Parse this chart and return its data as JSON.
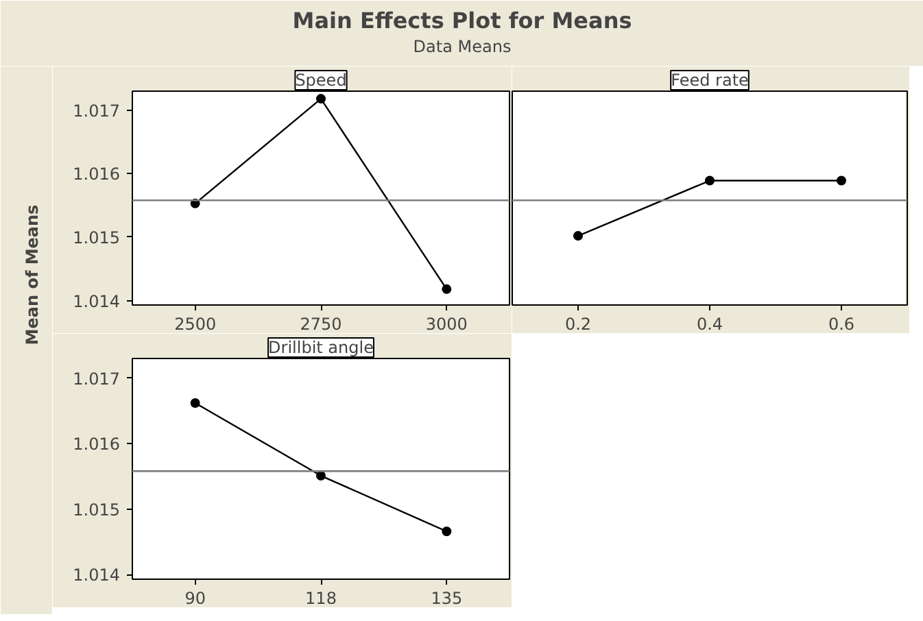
{
  "chart_data": [
    {
      "type": "line",
      "title": "Main Effects Plot for Means",
      "subtitle": "Data Means",
      "ylabel": "Mean of Means",
      "xlabel": "Speed",
      "categories": [
        "2500",
        "2750",
        "3000"
      ],
      "series": [
        {
          "color": "#000000",
          "values": [
            1.01553,
            1.01718,
            1.01418
          ]
        }
      ],
      "ylim": [
        1.01393,
        1.0173
      ],
      "yticks": [
        1.014,
        1.015,
        1.016,
        1.017
      ],
      "marker": "circle",
      "ref_lines": [
        {
          "axis": "y",
          "value": 1.01558,
          "label": null,
          "color": "#7f7f7f"
        }
      ]
    },
    {
      "type": "line",
      "xlabel": "Feed rate",
      "categories": [
        "0.2",
        "0.4",
        "0.6"
      ],
      "series": [
        {
          "color": "#000000",
          "values": [
            1.01502,
            1.01589,
            1.01589
          ]
        }
      ],
      "ylim": [
        1.01393,
        1.0173
      ],
      "yticks": [
        1.014,
        1.015,
        1.016,
        1.017
      ],
      "tick_labels": "x",
      "marker": "circle",
      "ref_lines": [
        {
          "axis": "y",
          "value": 1.01558,
          "label": null,
          "color": "#7f7f7f"
        }
      ]
    },
    {
      "type": "line",
      "xlabel": "Drillbit angle",
      "categories": [
        "90",
        "118",
        "135"
      ],
      "series": [
        {
          "color": "#000000",
          "values": [
            1.01662,
            1.01551,
            1.01466
          ]
        }
      ],
      "ylim": [
        1.01393,
        1.0173
      ],
      "yticks": [
        1.014,
        1.015,
        1.016,
        1.017
      ],
      "marker": "circle",
      "ref_lines": [
        {
          "axis": "y",
          "value": 1.01558,
          "label": null,
          "color": "#7f7f7f"
        }
      ]
    }
  ]
}
